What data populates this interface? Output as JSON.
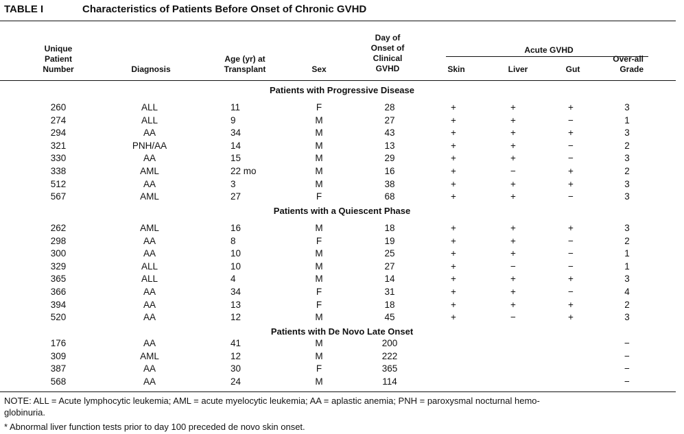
{
  "title": {
    "label": "TABLE I",
    "text": "Characteristics of Patients Before Onset of Chronic GVHD"
  },
  "headers": {
    "patient": [
      "Unique",
      "Patient",
      "Number"
    ],
    "diagnosis": "Diagnosis",
    "age": [
      "Age (yr) at",
      "Transplant"
    ],
    "sex": "Sex",
    "day": [
      "Day of",
      "Onset of",
      "Clinical",
      "GVHD"
    ],
    "acute_group": "Acute GVHD",
    "skin": "Skin",
    "liver": "Liver",
    "gut": "Gut",
    "overall": [
      "Over-all",
      "Grade"
    ]
  },
  "sections": [
    {
      "title": "Patients with Progressive Disease",
      "rows": [
        [
          "260",
          "ALL",
          "11",
          "F",
          "28",
          "+",
          "+",
          "+",
          "3"
        ],
        [
          "274",
          "ALL",
          "9",
          "M",
          "27",
          "+",
          "+",
          "−",
          "1"
        ],
        [
          "294",
          "AA",
          "34",
          "M",
          "43",
          "+",
          "+",
          "+",
          "3"
        ],
        [
          "321",
          "PNH/AA",
          "14",
          "M",
          "13",
          "+",
          "+",
          "−",
          "2"
        ],
        [
          "330",
          "AA",
          "15",
          "M",
          "29",
          "+",
          "+",
          "−",
          "3"
        ],
        [
          "338",
          "AML",
          "22 mo",
          "M",
          "16",
          "+",
          "−",
          "+",
          "2"
        ],
        [
          "512",
          "AA",
          "3",
          "M",
          "38",
          "+",
          "+",
          "+",
          "3"
        ],
        [
          "567",
          "AML",
          "27",
          "F",
          "68",
          "+",
          "+",
          "−",
          "3"
        ]
      ]
    },
    {
      "title": "Patients with a Quiescent Phase",
      "rows": [
        [
          "262",
          "AML",
          "16",
          "M",
          "18",
          "+",
          "+",
          "+",
          "3"
        ],
        [
          "298",
          "AA",
          "8",
          "F",
          "19",
          "+",
          "+",
          "−",
          "2"
        ],
        [
          "300",
          "AA",
          "10",
          "M",
          "25",
          "+",
          "+",
          "−",
          "1"
        ],
        [
          "329",
          "ALL",
          "10",
          "M",
          "27",
          "+",
          "−",
          "−",
          "1"
        ],
        [
          "365",
          "ALL",
          "4",
          "M",
          "14",
          "+",
          "+",
          "+",
          "3"
        ],
        [
          "366",
          "AA",
          "34",
          "F",
          "31",
          "+",
          "+",
          "−",
          "4"
        ],
        [
          "394",
          "AA",
          "13",
          "F",
          "18",
          "+",
          "+",
          "+",
          "2"
        ],
        [
          "520",
          "AA",
          "12",
          "M",
          "45",
          "+",
          "−",
          "+",
          "3"
        ]
      ]
    },
    {
      "title": "Patients with De Novo Late Onset",
      "rows": [
        [
          "176",
          "AA",
          "41",
          "M",
          "200",
          "",
          "",
          "",
          "−"
        ],
        [
          "309",
          "AML",
          "12",
          "M",
          "222",
          "",
          "",
          "",
          "−"
        ],
        [
          "387",
          "AA",
          "30",
          "F",
          "365",
          "",
          "",
          "",
          "−"
        ],
        [
          "568",
          "AA",
          "24",
          "M",
          "114",
          "",
          "",
          "",
          "−"
        ]
      ]
    }
  ],
  "notes": {
    "note_line1": "NOTE: ALL = Acute lymphocytic leukemia; AML = acute myelocytic leukemia; AA = aplastic anemia; PNH = paroxysmal nocturnal hemo-",
    "note_line2": "globinuria.",
    "footnote": "* Abnormal liver function tests prior to day 100 preceded de novo skin onset."
  }
}
